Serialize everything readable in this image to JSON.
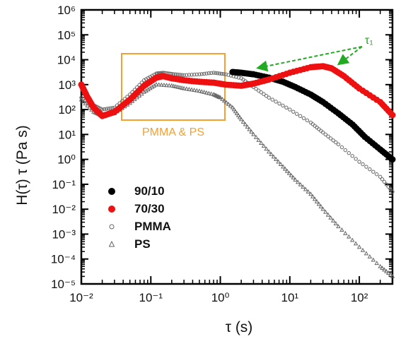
{
  "chart_data": {
    "type": "scatter",
    "title": "",
    "xlabel": "τ (s)",
    "ylabel": "H(τ) τ (Pa s)",
    "x_scale": "log",
    "y_scale": "log",
    "xlim": [
      0.01,
      300
    ],
    "ylim": [
      1e-05,
      1000000.0
    ],
    "x_ticks": [
      {
        "value": 0.01,
        "label": "10⁻²"
      },
      {
        "value": 0.1,
        "label": "10⁻¹"
      },
      {
        "value": 1,
        "label": "10⁰"
      },
      {
        "value": 10,
        "label": "10¹"
      },
      {
        "value": 100,
        "label": "10²"
      }
    ],
    "y_ticks": [
      {
        "value": 1000000.0,
        "label": "10⁶"
      },
      {
        "value": 100000.0,
        "label": "10⁵"
      },
      {
        "value": 10000.0,
        "label": "10⁴"
      },
      {
        "value": 1000.0,
        "label": "10³"
      },
      {
        "value": 100.0,
        "label": "10²"
      },
      {
        "value": 10.0,
        "label": "10¹"
      },
      {
        "value": 1.0,
        "label": "10⁰"
      },
      {
        "value": 0.1,
        "label": "10⁻¹"
      },
      {
        "value": 0.01,
        "label": "10⁻²"
      },
      {
        "value": 0.001,
        "label": "10⁻³"
      },
      {
        "value": 0.0001,
        "label": "10⁻⁴"
      },
      {
        "value": 1e-05,
        "label": "10⁻⁵"
      }
    ],
    "grid": false,
    "legend_position": "lower-left",
    "series": [
      {
        "name": "90/10",
        "color": "#000000",
        "marker": "filled-circle",
        "points": [
          [
            1.5,
            3200
          ],
          [
            2,
            3000
          ],
          [
            3,
            2600
          ],
          [
            5,
            1900
          ],
          [
            8,
            1300
          ],
          [
            12,
            800
          ],
          [
            20,
            400
          ],
          [
            30,
            200
          ],
          [
            50,
            70
          ],
          [
            80,
            25
          ],
          [
            120,
            8
          ],
          [
            200,
            2.5
          ],
          [
            300,
            1
          ]
        ]
      },
      {
        "name": "70/30",
        "color": "#ee1111",
        "marker": "filled-circle",
        "points": [
          [
            0.01,
            1000
          ],
          [
            0.012,
            350
          ],
          [
            0.015,
            120
          ],
          [
            0.02,
            55
          ],
          [
            0.03,
            80
          ],
          [
            0.05,
            250
          ],
          [
            0.08,
            900
          ],
          [
            0.12,
            1900
          ],
          [
            0.15,
            2200
          ],
          [
            0.2,
            1800
          ],
          [
            0.3,
            1500
          ],
          [
            0.5,
            1300
          ],
          [
            0.8,
            1200
          ],
          [
            1.2,
            1000
          ],
          [
            2,
            900
          ],
          [
            3,
            1100
          ],
          [
            5,
            1600
          ],
          [
            10,
            3000
          ],
          [
            20,
            5000
          ],
          [
            30,
            5500
          ],
          [
            40,
            4500
          ],
          [
            60,
            2200
          ],
          [
            100,
            700
          ],
          [
            200,
            200
          ],
          [
            300,
            60
          ]
        ]
      },
      {
        "name": "PMMA",
        "color": "#666666",
        "marker": "open-circle",
        "points": [
          [
            0.01,
            300
          ],
          [
            0.015,
            150
          ],
          [
            0.02,
            100
          ],
          [
            0.03,
            120
          ],
          [
            0.05,
            400
          ],
          [
            0.08,
            1500
          ],
          [
            0.12,
            2800
          ],
          [
            0.15,
            3000
          ],
          [
            0.2,
            2700
          ],
          [
            0.3,
            2400
          ],
          [
            0.5,
            2600
          ],
          [
            0.8,
            3000
          ],
          [
            1.2,
            2600
          ],
          [
            2,
            1800
          ],
          [
            3,
            800
          ],
          [
            5,
            300
          ],
          [
            10,
            100
          ],
          [
            20,
            30
          ],
          [
            30,
            12
          ],
          [
            50,
            4
          ],
          [
            100,
            0.8
          ],
          [
            200,
            0.2
          ],
          [
            300,
            0.05
          ]
        ]
      },
      {
        "name": "PS",
        "color": "#666666",
        "marker": "open-triangle",
        "points": [
          [
            0.01,
            250
          ],
          [
            0.015,
            80
          ],
          [
            0.02,
            55
          ],
          [
            0.03,
            70
          ],
          [
            0.05,
            180
          ],
          [
            0.08,
            500
          ],
          [
            0.12,
            1000
          ],
          [
            0.2,
            900
          ],
          [
            0.3,
            700
          ],
          [
            0.5,
            550
          ],
          [
            0.8,
            400
          ],
          [
            1,
            300
          ],
          [
            1.5,
            120
          ],
          [
            2,
            40
          ],
          [
            3,
            10
          ],
          [
            5,
            2
          ],
          [
            8,
            0.5
          ],
          [
            12,
            0.15
          ],
          [
            20,
            0.04
          ],
          [
            30,
            0.01
          ],
          [
            50,
            0.002
          ],
          [
            100,
            0.0003
          ],
          [
            200,
            5e-05
          ],
          [
            300,
            2e-05
          ]
        ]
      }
    ],
    "annotations": {
      "box_label": "PMMA & PS",
      "box_color": "#f5a030",
      "tau_label": "τ₁",
      "arrow_color": "#22aa22"
    }
  }
}
